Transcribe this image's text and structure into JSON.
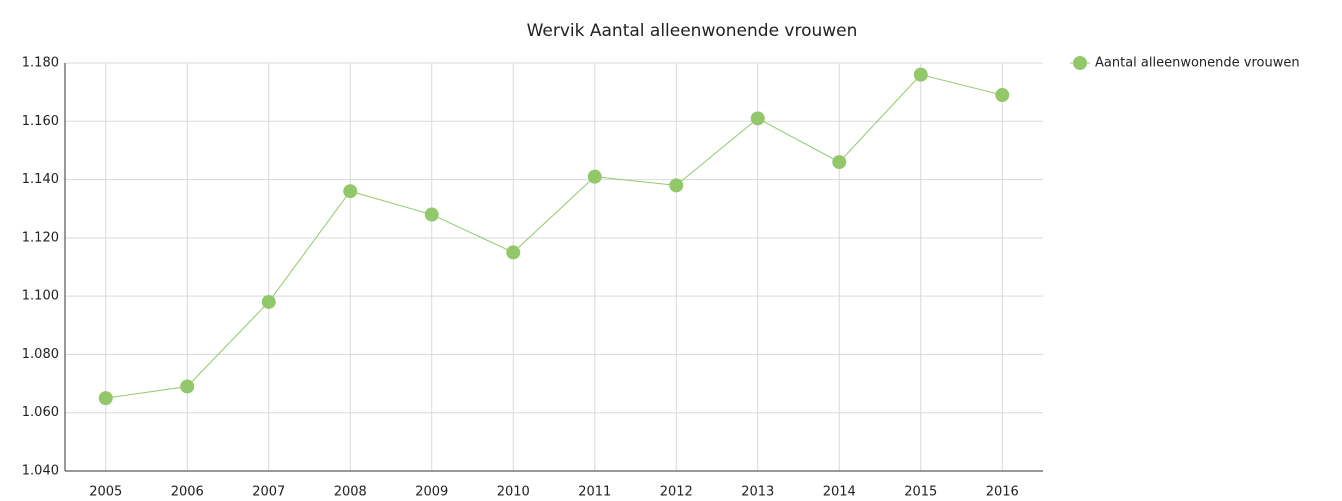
{
  "chart_data": {
    "type": "line",
    "title": "Wervik  Aantal alleenwonende vrouwen",
    "categories": [
      "2005",
      "2006",
      "2007",
      "2008",
      "2009",
      "2010",
      "2011",
      "2012",
      "2013",
      "2014",
      "2015",
      "2016"
    ],
    "series": [
      {
        "name": "Aantal alleenwonende vrouwen",
        "color": "#92c86a",
        "values": [
          1065,
          1069,
          1098,
          1136,
          1128,
          1115,
          1141,
          1138,
          1161,
          1146,
          1176,
          1169
        ]
      }
    ],
    "ylim": [
      1040,
      1180
    ],
    "yticks": [
      {
        "value": 1040,
        "label": "1.040"
      },
      {
        "value": 1060,
        "label": "1.060"
      },
      {
        "value": 1080,
        "label": "1.080"
      },
      {
        "value": 1100,
        "label": "1.100"
      },
      {
        "value": 1120,
        "label": "1.120"
      },
      {
        "value": 1140,
        "label": "1.140"
      },
      {
        "value": 1160,
        "label": "1.160"
      },
      {
        "value": 1180,
        "label": "1.180"
      }
    ],
    "grid": true,
    "legend": "top-right"
  }
}
